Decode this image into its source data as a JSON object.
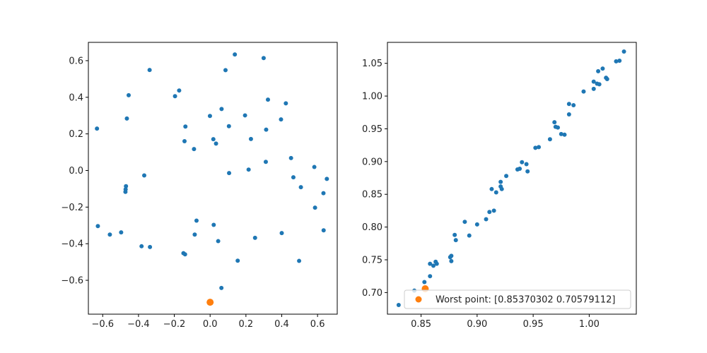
{
  "chart_data": [
    {
      "type": "scatter",
      "title": "",
      "xlabel": "",
      "ylabel": "",
      "xlim": [
        -0.68,
        0.71
      ],
      "ylim": [
        -0.785,
        0.7
      ],
      "xticks": [
        -0.6,
        -0.4,
        -0.2,
        0.0,
        0.2,
        0.4,
        0.6
      ],
      "xtick_labels": [
        "−0.6",
        "−0.4",
        "−0.2",
        "0.0",
        "0.2",
        "0.4",
        "0.6"
      ],
      "yticks": [
        -0.6,
        -0.4,
        -0.2,
        0.0,
        0.2,
        0.4,
        0.6
      ],
      "ytick_labels": [
        "−0.6",
        "−0.4",
        "−0.2",
        "0.0",
        "0.2",
        "0.4",
        "0.6"
      ],
      "grid": false,
      "series": [
        {
          "color": "#1f77b4",
          "marker_size": "small",
          "points": [
            [
              -0.632,
              0.229
            ],
            [
              -0.627,
              -0.304
            ],
            [
              -0.56,
              -0.35
            ],
            [
              -0.497,
              -0.338
            ],
            [
              -0.47,
              -0.086
            ],
            [
              -0.472,
              -0.103
            ],
            [
              -0.473,
              -0.117
            ],
            [
              -0.465,
              0.284
            ],
            [
              -0.455,
              0.411
            ],
            [
              -0.383,
              -0.414
            ],
            [
              -0.368,
              -0.027
            ],
            [
              -0.338,
              0.549
            ],
            [
              -0.336,
              -0.418
            ],
            [
              -0.196,
              0.406
            ],
            [
              -0.173,
              0.437
            ],
            [
              -0.149,
              -0.452
            ],
            [
              -0.14,
              -0.458
            ],
            [
              -0.138,
              0.24
            ],
            [
              -0.143,
              0.16
            ],
            [
              -0.09,
              0.117
            ],
            [
              -0.086,
              -0.35
            ],
            [
              -0.076,
              -0.274
            ],
            [
              -0.001,
              0.298
            ],
            [
              0.018,
              0.171
            ],
            [
              0.033,
              0.147
            ],
            [
              0.02,
              -0.297
            ],
            [
              0.045,
              -0.386
            ],
            [
              0.064,
              0.336
            ],
            [
              0.063,
              -0.642
            ],
            [
              0.086,
              0.548
            ],
            [
              0.105,
              0.242
            ],
            [
              0.106,
              -0.014
            ],
            [
              0.138,
              0.634
            ],
            [
              0.154,
              -0.493
            ],
            [
              0.195,
              0.301
            ],
            [
              0.215,
              0.005
            ],
            [
              0.228,
              0.172
            ],
            [
              0.251,
              -0.368
            ],
            [
              0.299,
              0.614
            ],
            [
              0.311,
              0.047
            ],
            [
              0.313,
              0.223
            ],
            [
              0.323,
              0.387
            ],
            [
              0.396,
              0.279
            ],
            [
              0.4,
              -0.342
            ],
            [
              0.423,
              0.367
            ],
            [
              0.452,
              0.068
            ],
            [
              0.465,
              -0.037
            ],
            [
              0.497,
              -0.494
            ],
            [
              0.507,
              -0.091
            ],
            [
              0.582,
              0.019
            ],
            [
              0.586,
              -0.203
            ],
            [
              0.633,
              -0.124
            ],
            [
              0.634,
              -0.327
            ],
            [
              0.652,
              -0.046
            ]
          ]
        },
        {
          "color": "#ff7f0e",
          "marker_size": "large",
          "points": [
            [
              0.0,
              -0.72
            ]
          ]
        }
      ]
    },
    {
      "type": "scatter",
      "title": "",
      "xlabel": "",
      "ylabel": "",
      "xlim": [
        0.82,
        1.042
      ],
      "ylim": [
        0.667,
        1.082
      ],
      "xticks": [
        0.85,
        0.9,
        0.95,
        1.0
      ],
      "xtick_labels": [
        "0.85",
        "0.90",
        "0.95",
        "1.00"
      ],
      "yticks": [
        0.7,
        0.75,
        0.8,
        0.85,
        0.9,
        0.95,
        1.0,
        1.05
      ],
      "ytick_labels": [
        "0.70",
        "0.75",
        "0.80",
        "0.85",
        "0.90",
        "0.95",
        "1.00",
        "1.05"
      ],
      "grid": false,
      "legend": {
        "placement": "lower-right",
        "entries": [
          {
            "label": "Worst point: [0.85370302 0.70579112]",
            "color": "#ff7f0e"
          }
        ]
      },
      "series": [
        {
          "color": "#1f77b4",
          "marker_size": "small",
          "points": [
            [
              0.83,
              0.681
            ],
            [
              0.844,
              0.703
            ],
            [
              0.853,
              0.716
            ],
            [
              0.858,
              0.744
            ],
            [
              0.858,
              0.725
            ],
            [
              0.861,
              0.741
            ],
            [
              0.864,
              0.744
            ],
            [
              0.863,
              0.747
            ],
            [
              0.876,
              0.754
            ],
            [
              0.877,
              0.756
            ],
            [
              0.877,
              0.748
            ],
            [
              0.88,
              0.788
            ],
            [
              0.881,
              0.78
            ],
            [
              0.889,
              0.808
            ],
            [
              0.893,
              0.787
            ],
            [
              0.9,
              0.804
            ],
            [
              0.908,
              0.812
            ],
            [
              0.911,
              0.823
            ],
            [
              0.913,
              0.858
            ],
            [
              0.915,
              0.825
            ],
            [
              0.917,
              0.853
            ],
            [
              0.921,
              0.869
            ],
            [
              0.921,
              0.862
            ],
            [
              0.922,
              0.858
            ],
            [
              0.926,
              0.878
            ],
            [
              0.936,
              0.888
            ],
            [
              0.938,
              0.889
            ],
            [
              0.94,
              0.899
            ],
            [
              0.944,
              0.896
            ],
            [
              0.945,
              0.885
            ],
            [
              0.952,
              0.921
            ],
            [
              0.955,
              0.922
            ],
            [
              0.965,
              0.934
            ],
            [
              0.969,
              0.96
            ],
            [
              0.97,
              0.953
            ],
            [
              0.972,
              0.952
            ],
            [
              0.975,
              0.942
            ],
            [
              0.978,
              0.941
            ],
            [
              0.982,
              0.988
            ],
            [
              0.982,
              0.972
            ],
            [
              0.986,
              0.986
            ],
            [
              0.995,
              1.007
            ],
            [
              1.004,
              1.022
            ],
            [
              1.004,
              1.011
            ],
            [
              1.007,
              1.019
            ],
            [
              1.008,
              1.038
            ],
            [
              1.009,
              1.018
            ],
            [
              1.012,
              1.042
            ],
            [
              1.015,
              1.028
            ],
            [
              1.016,
              1.026
            ],
            [
              1.024,
              1.053
            ],
            [
              1.027,
              1.054
            ],
            [
              1.031,
              1.068
            ]
          ]
        },
        {
          "color": "#ff7f0e",
          "marker_size": "large",
          "points": [
            [
              0.8537,
              0.7058
            ]
          ]
        }
      ]
    }
  ]
}
